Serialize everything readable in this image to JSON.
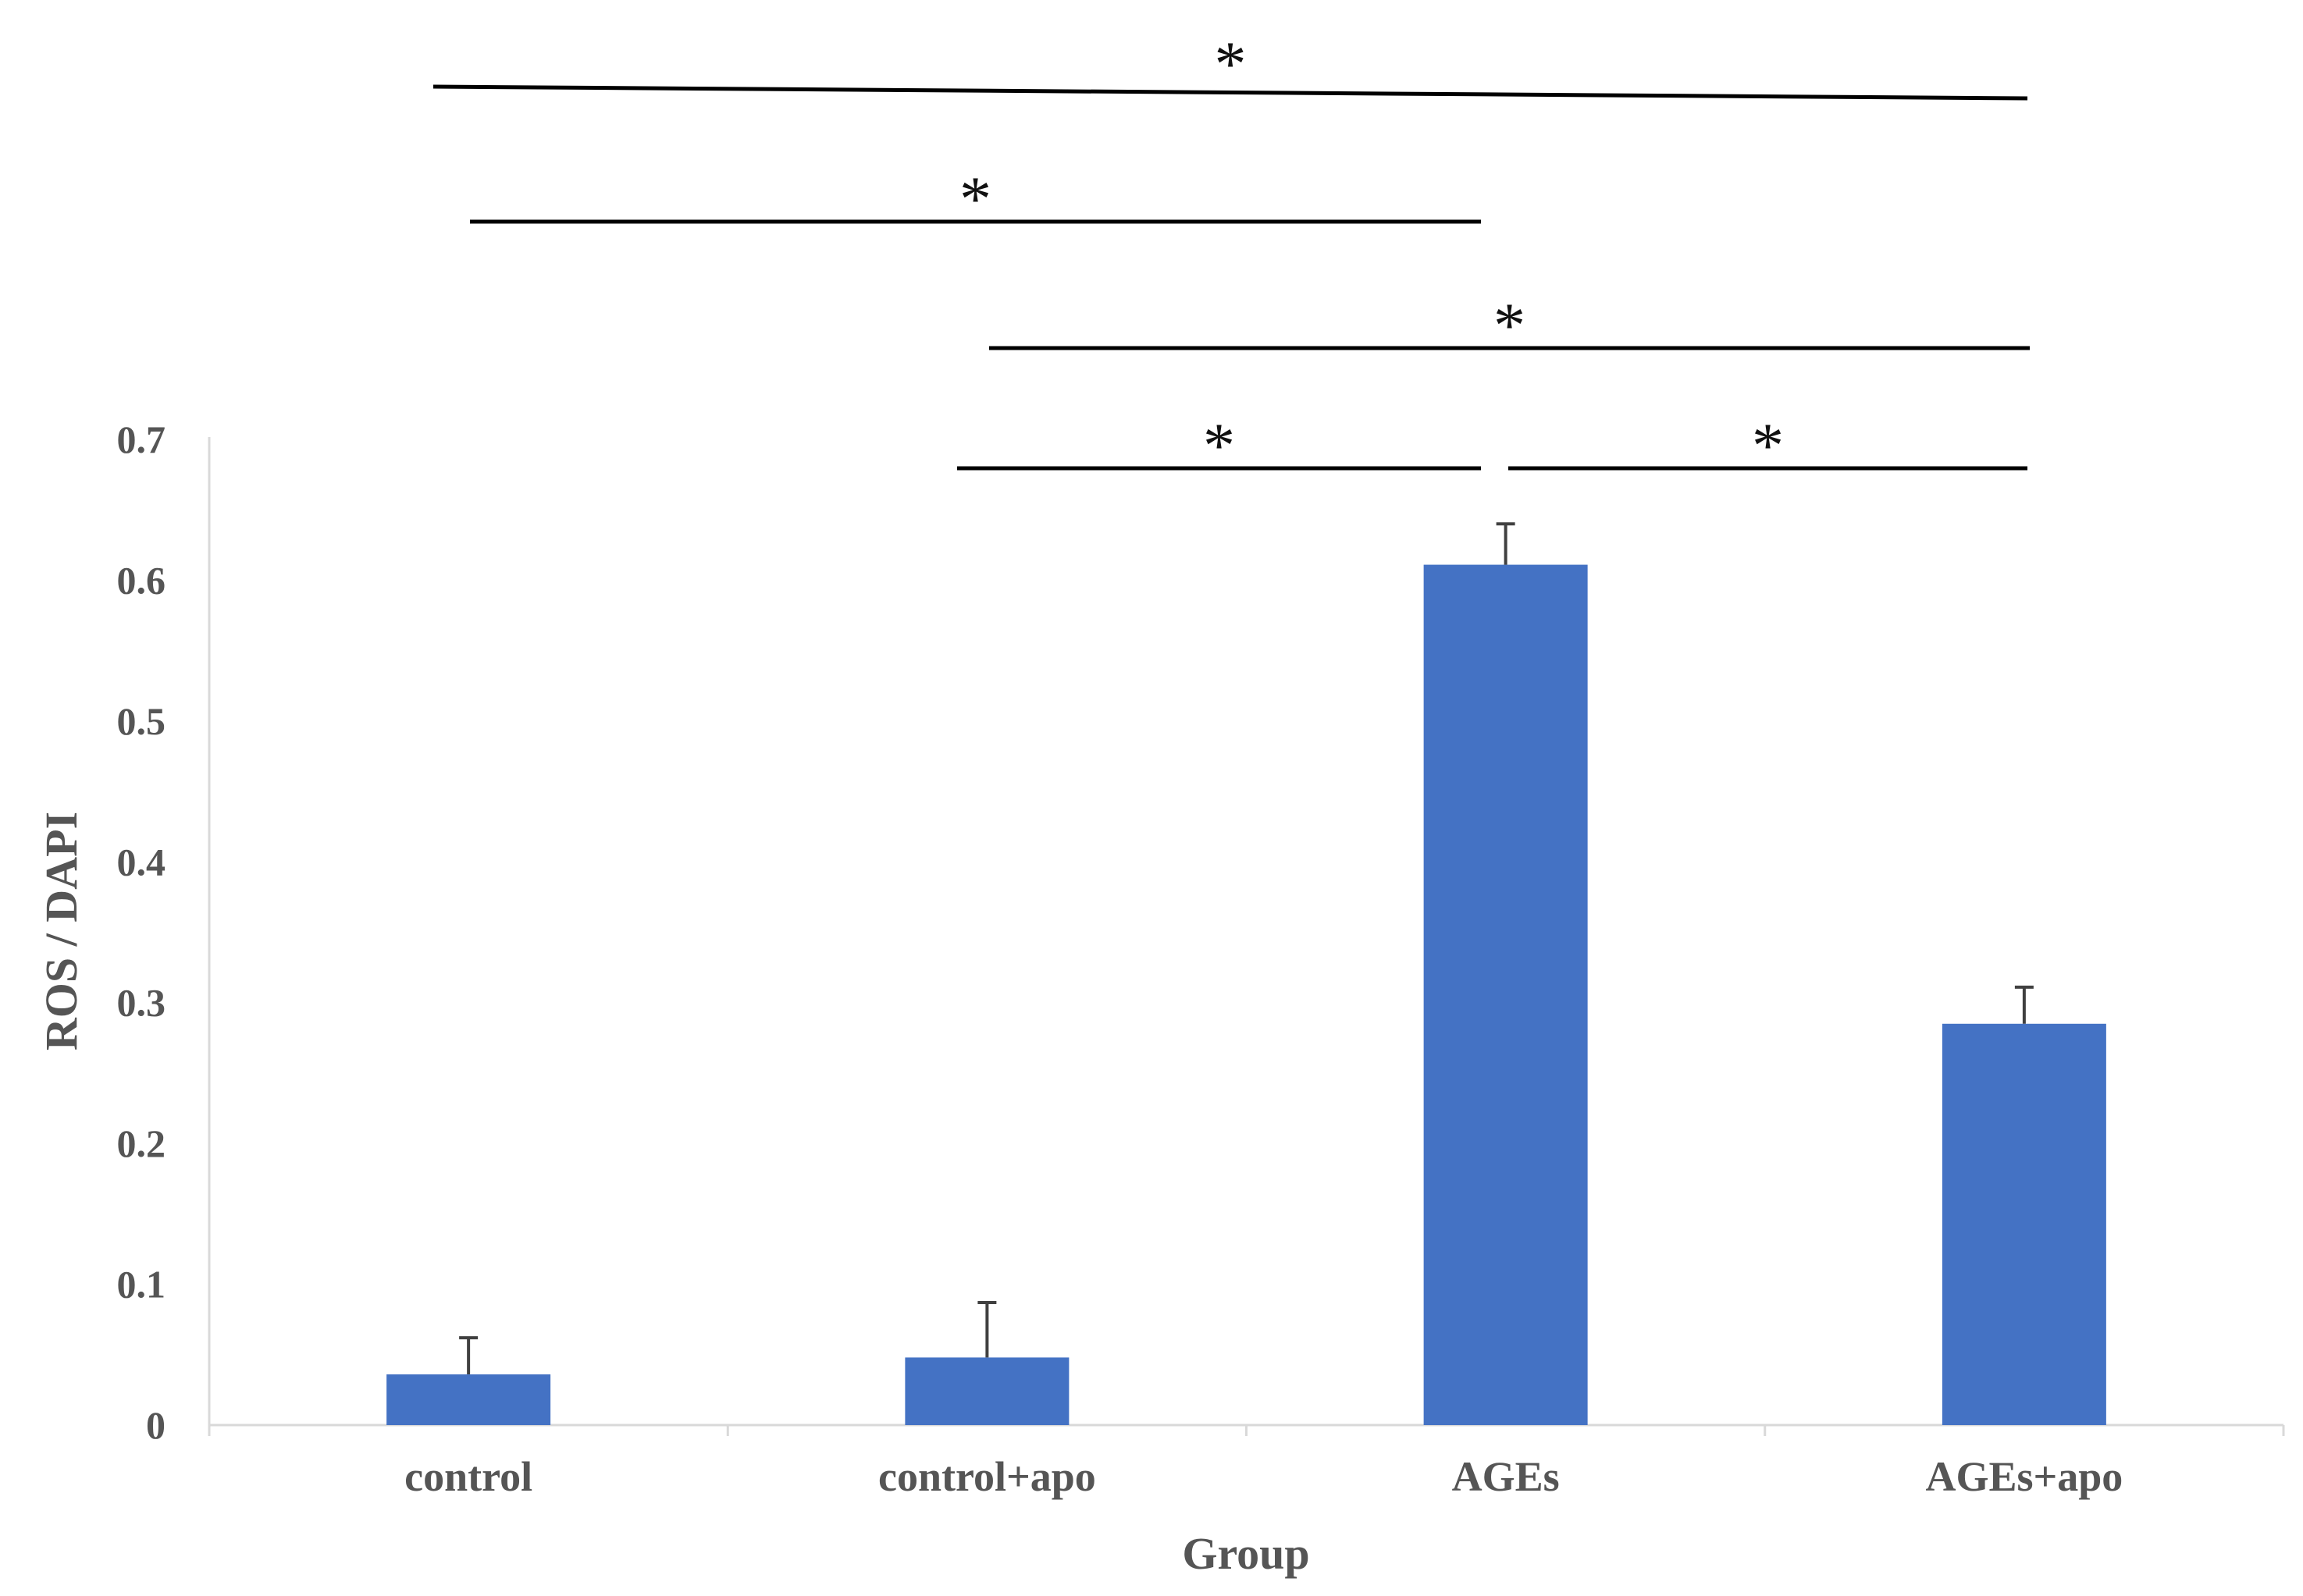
{
  "chart_data": {
    "type": "bar",
    "title": "",
    "xlabel": "Group",
    "ylabel": "ROS / DAPI",
    "ylim": [
      0,
      0.7
    ],
    "yticks": [
      "0",
      "0.1",
      "0.2",
      "0.3",
      "0.4",
      "0.5",
      "0.6",
      "0.7"
    ],
    "categories": [
      "control",
      "control+apo",
      "AGEs",
      "AGEs+apo"
    ],
    "values": [
      0.036,
      0.048,
      0.611,
      0.285
    ],
    "error_upper": [
      0.026,
      0.039,
      0.029,
      0.026
    ],
    "bar_color": "#4472C4",
    "grid": false,
    "legend": "none",
    "significance": [
      {
        "from": "control",
        "to": "AGEs+apo",
        "label": "*"
      },
      {
        "from": "control",
        "to": "AGEs",
        "label": "*"
      },
      {
        "from": "control+apo",
        "to": "AGEs+apo",
        "label": "*"
      },
      {
        "from": "control+apo",
        "to": "AGEs",
        "label": "*"
      },
      {
        "from": "AGEs",
        "to": "AGEs+apo",
        "label": "*"
      }
    ]
  }
}
